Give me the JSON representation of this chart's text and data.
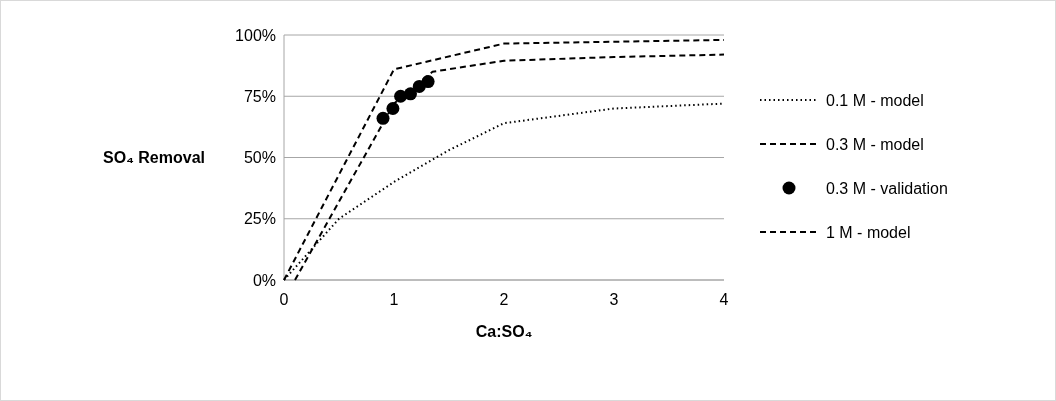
{
  "chart_data": {
    "type": "line",
    "xlabel": "Ca:SO₄",
    "ylabel": "SO₄ Removal",
    "xlim": [
      0,
      4
    ],
    "xticks": [
      0,
      1,
      2,
      3,
      4
    ],
    "ylim": [
      0,
      1
    ],
    "yticks": [
      {
        "value": 0,
        "label": "0%"
      },
      {
        "value": 0.25,
        "label": "25%"
      },
      {
        "value": 0.5,
        "label": "50%"
      },
      {
        "value": 0.75,
        "label": "75%"
      },
      {
        "value": 1,
        "label": "100%"
      }
    ],
    "grid": "y",
    "legend": "right",
    "series": [
      {
        "name": "0.1 M - model",
        "color": "#000000",
        "line_style": "dotted",
        "marker": "none",
        "x": [
          0,
          0.5,
          1,
          1.5,
          2,
          3,
          4
        ],
        "values": [
          0,
          0.25,
          0.4,
          0.53,
          0.64,
          0.7,
          0.72
        ]
      },
      {
        "name": "0.3 M - model",
        "color": "#000000",
        "line_style": "dashed",
        "marker": "none",
        "x": [
          0.1,
          1,
          1.35,
          2,
          3,
          4
        ],
        "values": [
          0,
          0.72,
          0.85,
          0.895,
          0.91,
          0.92
        ]
      },
      {
        "name": "0.3 M - validation",
        "type": "scatter",
        "color": "#000000",
        "marker": "circle",
        "x": [
          0.9,
          0.99,
          1.06,
          1.15,
          1.23,
          1.31
        ],
        "values": [
          0.66,
          0.7,
          0.75,
          0.76,
          0.79,
          0.81
        ]
      },
      {
        "name": "1 M - model",
        "color": "#000000",
        "line_style": "dashed",
        "marker": "none",
        "x": [
          0,
          1,
          2,
          4
        ],
        "values": [
          0,
          0.86,
          0.965,
          0.98
        ]
      }
    ]
  }
}
